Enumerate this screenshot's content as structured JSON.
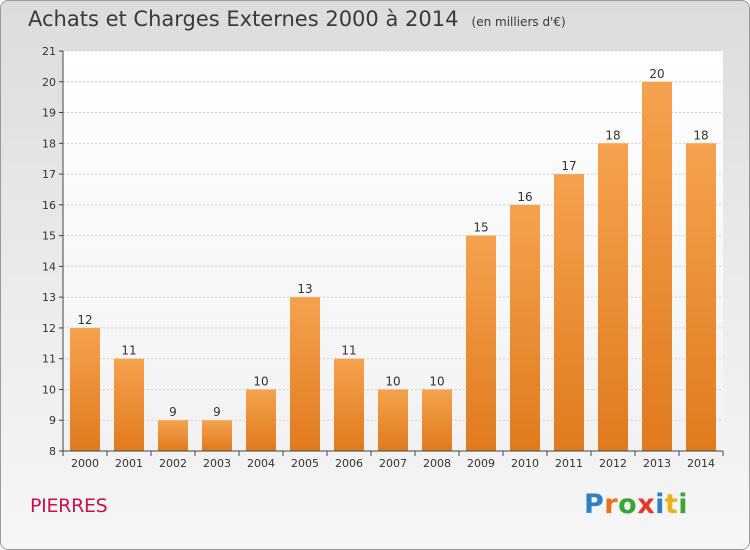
{
  "header": {
    "title": "Achats et Charges Externes 2000 à 2014",
    "subtitle": "(en milliers d'€)"
  },
  "location": "PIERRES",
  "brand": {
    "letters": [
      "P",
      "r",
      "o",
      "x",
      "i",
      "t",
      "i"
    ],
    "colors": [
      "#2f7fc4",
      "#e8701a",
      "#3aa535",
      "#e23a2a",
      "#2f7fc4",
      "#e8b21a",
      "#3aa535"
    ]
  },
  "chart_data": {
    "type": "bar",
    "title": "Achats et Charges Externes 2000 à 2014",
    "subtitle": "(en milliers d'€)",
    "xlabel": "",
    "ylabel": "",
    "categories": [
      "2000",
      "2001",
      "2002",
      "2003",
      "2004",
      "2005",
      "2006",
      "2007",
      "2008",
      "2009",
      "2010",
      "2011",
      "2012",
      "2013",
      "2014"
    ],
    "values": [
      12,
      11,
      9,
      9,
      10,
      13,
      11,
      10,
      10,
      15,
      16,
      17,
      18,
      20,
      18
    ],
    "ylim": [
      8,
      21
    ],
    "yticks": [
      8,
      9,
      10,
      11,
      12,
      13,
      14,
      15,
      16,
      17,
      18,
      19,
      20,
      21
    ],
    "grid": true,
    "bar_color_top": "#f5a24e",
    "bar_color_bottom": "#e07a1e"
  }
}
